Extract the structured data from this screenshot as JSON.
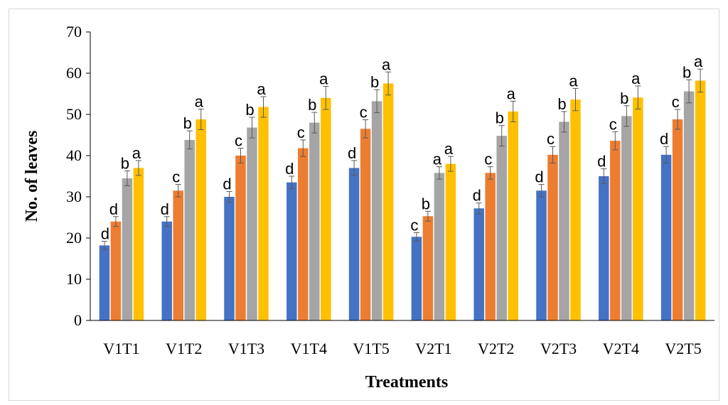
{
  "chart_data": {
    "type": "bar",
    "title": "",
    "xlabel": "Treatments",
    "ylabel": "No. of leaves",
    "ylim": [
      0,
      70
    ],
    "yticks": [
      0,
      10,
      20,
      30,
      40,
      50,
      60,
      70
    ],
    "grid": false,
    "legend": "none",
    "categories": [
      "V1T1",
      "V1T2",
      "V1T3",
      "V1T4",
      "V1T5",
      "V2T1",
      "V2T2",
      "V2T3",
      "V2T4",
      "V2T5"
    ],
    "series": [
      {
        "color": "#4472C4",
        "values": [
          18.2,
          24.0,
          30.0,
          33.5,
          37.0,
          20.3,
          27.2,
          31.5,
          35.0,
          40.2
        ],
        "errors": [
          1.0,
          1.2,
          1.3,
          1.5,
          1.8,
          1.0,
          1.3,
          1.5,
          1.8,
          2.0
        ],
        "letters": [
          "",
          "d",
          "d",
          "d",
          "d",
          "",
          "",
          "d",
          "d",
          "d"
        ]
      },
      {
        "color": "#ED7D31",
        "values": [
          24.0,
          31.5,
          40.0,
          41.8,
          46.5,
          25.3,
          35.8,
          40.2,
          43.6,
          48.8
        ],
        "errors": [
          1.2,
          1.5,
          1.8,
          2.0,
          2.2,
          1.2,
          1.5,
          2.0,
          2.2,
          2.4
        ],
        "letters": [
          "d",
          "c",
          "c",
          "c",
          "c",
          "b",
          "c",
          "c",
          "c",
          "c"
        ]
      },
      {
        "color": "#A5A5A5",
        "values": [
          34.5,
          43.8,
          46.8,
          48.0,
          53.2,
          35.8,
          44.8,
          48.2,
          49.6,
          55.6
        ],
        "errors": [
          1.8,
          2.2,
          2.5,
          2.5,
          2.8,
          1.5,
          2.5,
          2.5,
          2.5,
          2.8
        ],
        "letters": [
          "b",
          "b",
          "b",
          "b",
          "b",
          "a",
          "b",
          "b",
          "b",
          "b"
        ]
      },
      {
        "color": "#FFC000",
        "values": [
          37.0,
          48.8,
          51.8,
          54.0,
          57.5,
          38.0,
          50.7,
          53.6,
          54.1,
          58.2
        ],
        "errors": [
          1.8,
          2.5,
          2.5,
          2.8,
          2.8,
          1.8,
          2.5,
          2.7,
          2.8,
          2.8
        ],
        "letters": [
          "a",
          "a",
          "a",
          "a",
          "a",
          "a",
          "a",
          "a",
          "a",
          "a"
        ]
      }
    ],
    "annotations": [
      "c"
    ]
  }
}
